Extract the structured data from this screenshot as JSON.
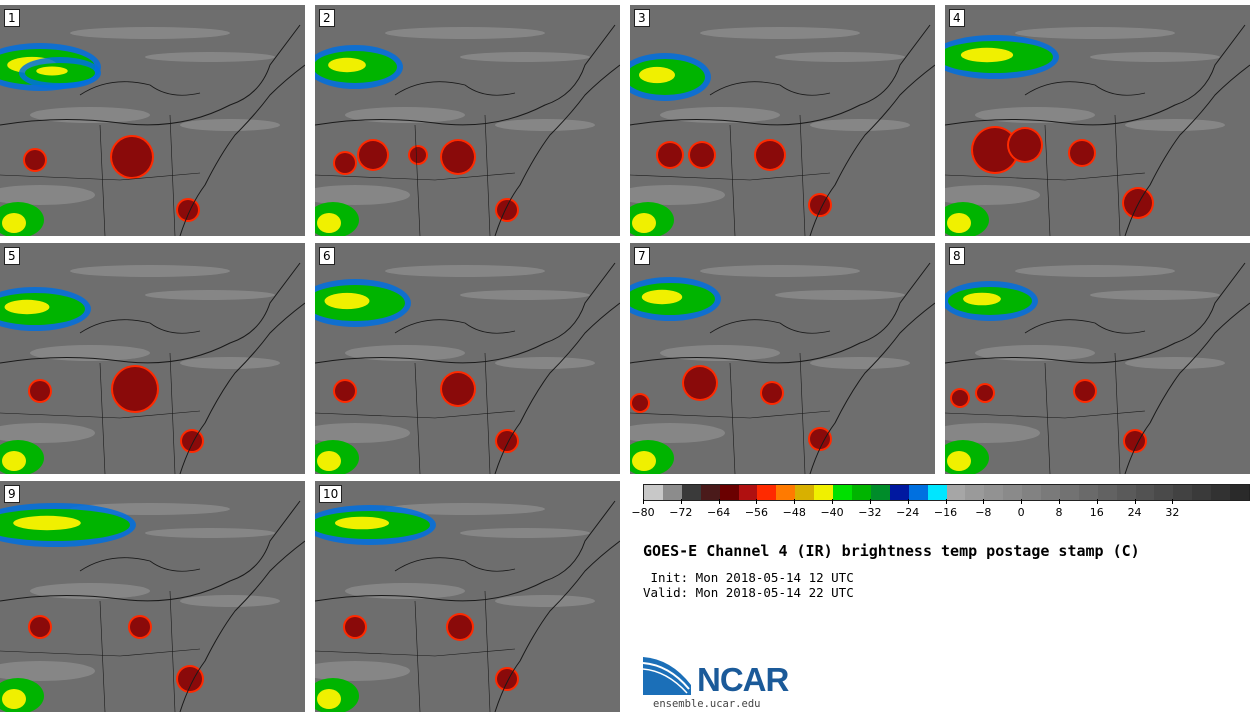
{
  "panels": [
    {
      "label": "1"
    },
    {
      "label": "2"
    },
    {
      "label": "3"
    },
    {
      "label": "4"
    },
    {
      "label": "5"
    },
    {
      "label": "6"
    },
    {
      "label": "7"
    },
    {
      "label": "8"
    },
    {
      "label": "9"
    },
    {
      "label": "10"
    }
  ],
  "colorbar": {
    "colors": [
      "#c8c8c8",
      "#8c8c8c",
      "#3a3a3a",
      "#4a1a1a",
      "#6a0000",
      "#b01010",
      "#ff2a00",
      "#ff7a00",
      "#d8b000",
      "#f0f000",
      "#00e000",
      "#00b400",
      "#008c2a",
      "#0018a0",
      "#0070e0",
      "#00e6ff",
      "#a6a6a6",
      "#9a9a9a",
      "#929292",
      "#8a8a8a",
      "#828282",
      "#7a7a7a",
      "#727272",
      "#6a6a6a",
      "#626262",
      "#5a5a5a",
      "#525252",
      "#4a4a4a",
      "#424242",
      "#3a3a3a",
      "#323232",
      "#2a2a2a"
    ],
    "min": -80,
    "max": 48,
    "tick_labels": [
      "−80",
      "−72",
      "−64",
      "−56",
      "−48",
      "−40",
      "−32",
      "−24",
      "−16",
      "−8",
      "0",
      "8",
      "16",
      "24",
      "32"
    ],
    "tick_values": [
      -80,
      -72,
      -64,
      -56,
      -48,
      -40,
      -32,
      -24,
      -16,
      -8,
      0,
      8,
      16,
      24,
      32
    ]
  },
  "title": "GOES-E Channel 4 (IR) brightness temp postage stamp (C)",
  "init": " Init: Mon 2018-05-14 12 UTC",
  "valid": "Valid: Mon 2018-05-14 22 UTC",
  "logo": {
    "name": "NCAR",
    "url": "ensemble.ucar.edu",
    "color": "#1b5a99"
  },
  "map_colors": {
    "background": "#6e6e6e",
    "land_cloud": "#9a9a9a",
    "boundary": "#1a1a1a"
  }
}
